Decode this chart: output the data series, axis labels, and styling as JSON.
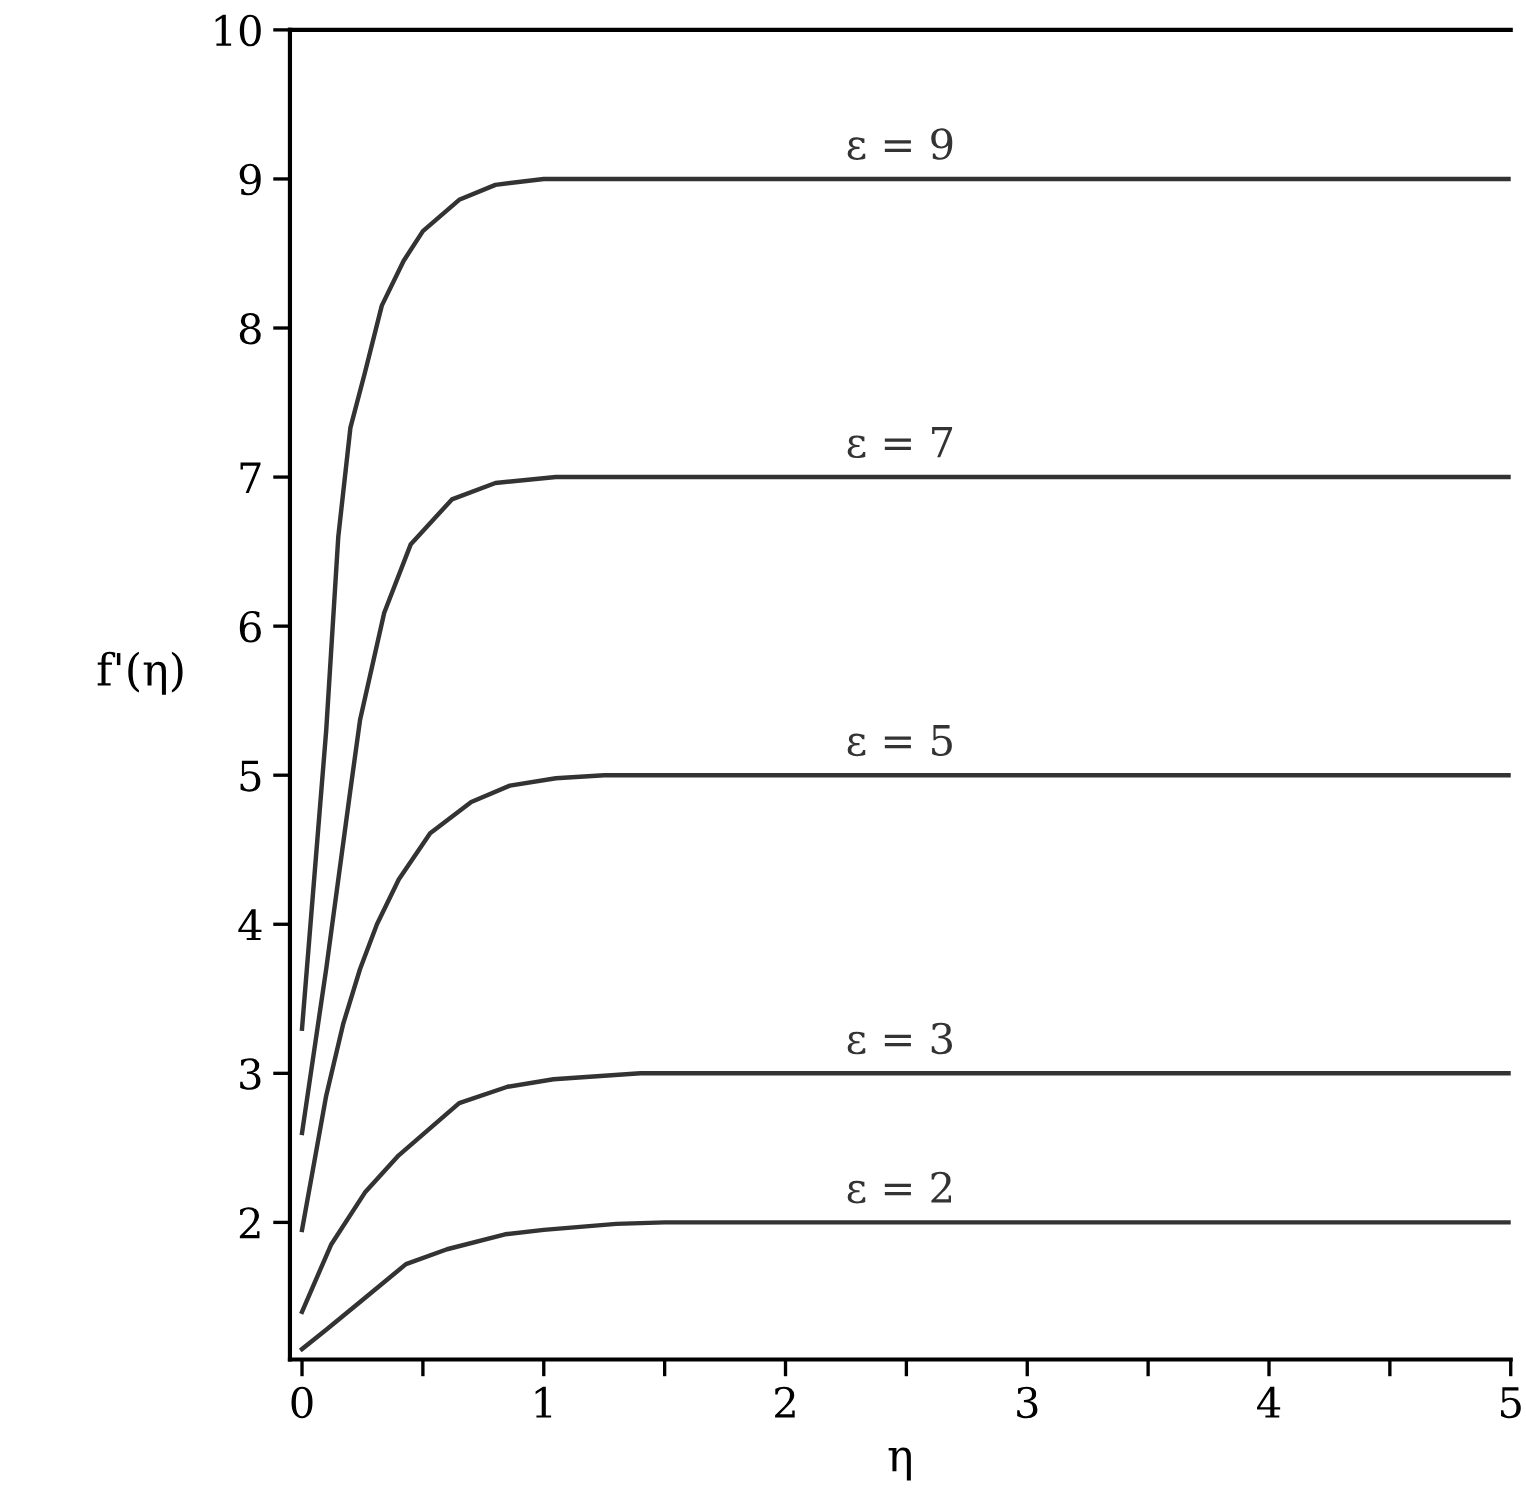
{
  "chart_data": {
    "type": "line",
    "xlabel": "η",
    "ylabel": "f'(η)",
    "xlim": [
      -0.05,
      5
    ],
    "ylim": [
      1.08,
      10
    ],
    "xticks": [
      0,
      {
        "value": 0.5,
        "label": null
      },
      1,
      {
        "value": 1.5,
        "label": null
      },
      2,
      {
        "value": 2.5,
        "label": null
      },
      3,
      {
        "value": 3.5,
        "label": null
      },
      4,
      {
        "value": 4.5,
        "label": null
      },
      5
    ],
    "yticks": [
      2,
      3,
      4,
      5,
      6,
      7,
      8,
      9,
      10
    ],
    "grid": false,
    "legend": false,
    "marker": "none",
    "line_style": "solid",
    "series": [
      {
        "name": "ε = 2",
        "color": "#333333",
        "x": [
          0,
          0.1,
          0.25,
          0.43,
          0.6,
          0.84,
          1.0,
          1.3,
          1.5,
          5
        ],
        "values": [
          1.15,
          1.28,
          1.48,
          1.72,
          1.82,
          1.92,
          1.95,
          1.99,
          2,
          2
        ]
      },
      {
        "name": "ε = 3",
        "color": "#333333",
        "x": [
          0,
          0.12,
          0.26,
          0.4,
          0.65,
          0.85,
          1.04,
          1.4,
          5
        ],
        "values": [
          1.4,
          1.85,
          2.2,
          2.45,
          2.8,
          2.91,
          2.96,
          3,
          3
        ]
      },
      {
        "name": "ε = 5",
        "color": "#333333",
        "x": [
          0,
          0.05,
          0.1,
          0.17,
          0.24,
          0.31,
          0.4,
          0.53,
          0.7,
          0.86,
          1.05,
          1.25,
          5
        ],
        "values": [
          1.95,
          2.4,
          2.85,
          3.33,
          3.7,
          4.0,
          4.3,
          4.61,
          4.82,
          4.93,
          4.98,
          5,
          5
        ]
      },
      {
        "name": "ε = 7",
        "color": "#333333",
        "x": [
          0,
          0.1,
          0.2,
          0.24,
          0.34,
          0.45,
          0.62,
          0.8,
          1.05,
          5
        ],
        "values": [
          2.6,
          3.7,
          4.9,
          5.37,
          6.09,
          6.55,
          6.85,
          6.96,
          7,
          7
        ]
      },
      {
        "name": "ε = 9",
        "color": "#333333",
        "x": [
          0,
          0.05,
          0.1,
          0.15,
          0.2,
          0.26,
          0.33,
          0.42,
          0.5,
          0.65,
          0.8,
          1.0,
          5
        ],
        "values": [
          3.3,
          4.3,
          5.3,
          6.6,
          7.33,
          7.7,
          8.15,
          8.45,
          8.65,
          8.86,
          8.96,
          9,
          9
        ]
      }
    ]
  }
}
